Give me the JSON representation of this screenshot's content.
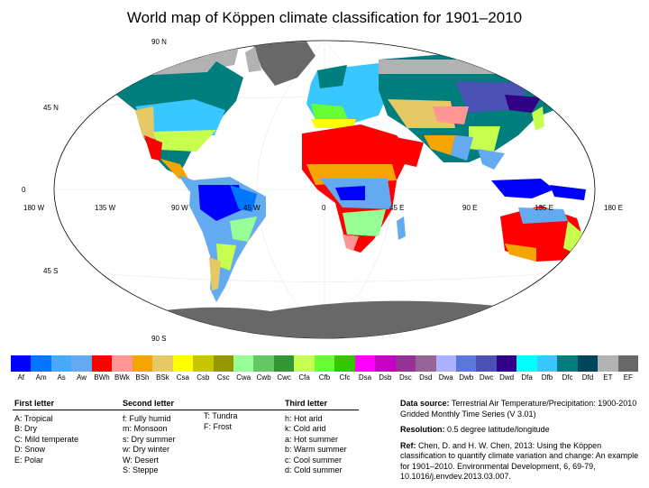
{
  "title": "World map of Köppen climate classification for 1901–2010",
  "map_labels": {
    "lat": [
      "90 N",
      "45 N",
      "0",
      "45 S",
      "90 S"
    ],
    "lon": [
      "180 W",
      "135 W",
      "90 W",
      "45 W",
      "0",
      "45 E",
      "90 E",
      "135 E",
      "180 E"
    ]
  },
  "legend": [
    {
      "code": "Af",
      "color": "#0000fe"
    },
    {
      "code": "Am",
      "color": "#0077ff"
    },
    {
      "code": "As",
      "color": "#46a9fa"
    },
    {
      "code": "Aw",
      "color": "#64aaf0"
    },
    {
      "code": "BWh",
      "color": "#fe0000"
    },
    {
      "code": "BWk",
      "color": "#fe9695"
    },
    {
      "code": "BSh",
      "color": "#f5a500"
    },
    {
      "code": "BSk",
      "color": "#e6c864"
    },
    {
      "code": "Csa",
      "color": "#ffff00"
    },
    {
      "code": "Csb",
      "color": "#c6c700"
    },
    {
      "code": "Csc",
      "color": "#969600"
    },
    {
      "code": "Cwa",
      "color": "#96ff96"
    },
    {
      "code": "Cwb",
      "color": "#63c764"
    },
    {
      "code": "Cwc",
      "color": "#329633"
    },
    {
      "code": "Cfa",
      "color": "#c6ff4e"
    },
    {
      "code": "Cfb",
      "color": "#66ff33"
    },
    {
      "code": "Cfc",
      "color": "#33c701"
    },
    {
      "code": "Dsa",
      "color": "#ff00fe"
    },
    {
      "code": "Dsb",
      "color": "#c600c7"
    },
    {
      "code": "Dsc",
      "color": "#963295"
    },
    {
      "code": "Dsd",
      "color": "#966495"
    },
    {
      "code": "Dwa",
      "color": "#abb1ff"
    },
    {
      "code": "Dwb",
      "color": "#5a77db"
    },
    {
      "code": "Dwc",
      "color": "#4c51b5"
    },
    {
      "code": "Dwd",
      "color": "#320087"
    },
    {
      "code": "Dfa",
      "color": "#00ffff"
    },
    {
      "code": "Dfb",
      "color": "#38c7ff"
    },
    {
      "code": "Dfc",
      "color": "#007e7d"
    },
    {
      "code": "Dfd",
      "color": "#00455e"
    },
    {
      "code": "ET",
      "color": "#b2b2b2"
    },
    {
      "code": "EF",
      "color": "#686868"
    }
  ],
  "first_letter": {
    "heading": "First letter",
    "items": [
      "A:  Tropical",
      "B:  Dry",
      "C:  Mild temperate",
      "D:  Snow",
      "E:  Polar"
    ]
  },
  "second_letter": {
    "heading": "Second letter",
    "items_a": [
      "f:   Fully humid",
      "m:  Monsoon",
      "s:   Dry summer",
      "w:  Dry winter",
      "W:  Desert",
      "S:  Steppe"
    ],
    "items_b": [
      "T:   Tundra",
      "F:   Frost"
    ]
  },
  "third_letter": {
    "heading": "Third letter",
    "items": [
      "h:   Hot arid",
      "k:   Cold arid",
      "a:   Hot summer",
      "b:   Warm summer",
      "c:   Cool summer",
      "d:   Cold summer"
    ]
  },
  "info": {
    "source_label": "Data source:",
    "source_text": "Terrestrial Air Temperature/Precipitation: 1900-2010 Gridded Monthly Time Series (V 3.01)",
    "resolution_label": "Resolution:",
    "resolution_text": "0.5 degree latitude/longitude",
    "ref_label": "Ref:",
    "ref_text": "Chen, D. and H. W. Chen, 2013: Using the Köppen classification to quantify climate variation and change: An example for 1901–2010. Environmental Development, 6, 69-79, 10.1016/j.envdev.2013.03.007."
  }
}
